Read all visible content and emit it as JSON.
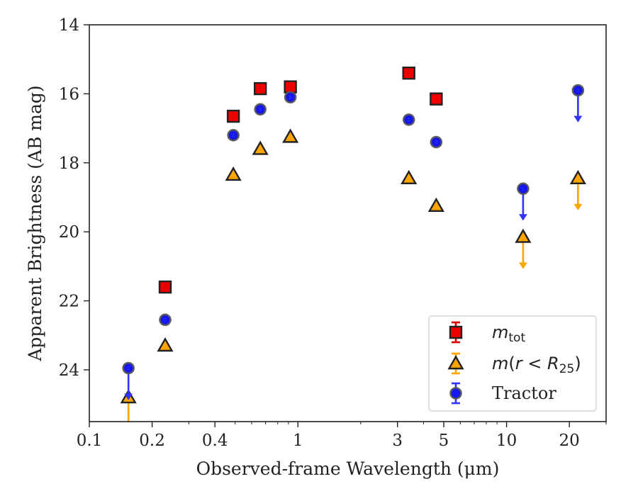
{
  "chart_data": {
    "type": "scatter",
    "title": "",
    "xlabel": "Observed-frame Wavelength (μm)",
    "ylabel": "Apparent Brightness (AB mag)",
    "xscale": "log",
    "xlim": [
      0.1,
      30
    ],
    "ylim": [
      25.5,
      14
    ],
    "y_inverted": true,
    "x_ticks": [
      {
        "value": 0.1,
        "label": "0.1"
      },
      {
        "value": 0.2,
        "label": "0.2"
      },
      {
        "value": 0.4,
        "label": "0.4"
      },
      {
        "value": 1,
        "label": "1"
      },
      {
        "value": 3,
        "label": "3"
      },
      {
        "value": 5,
        "label": "5"
      },
      {
        "value": 10,
        "label": "10"
      },
      {
        "value": 20,
        "label": "20"
      }
    ],
    "y_ticks": [
      {
        "value": 14,
        "label": "14"
      },
      {
        "value": 16,
        "label": "16"
      },
      {
        "value": 18,
        "label": "18"
      },
      {
        "value": 20,
        "label": "20"
      },
      {
        "value": 22,
        "label": "22"
      },
      {
        "value": 24,
        "label": "24"
      }
    ],
    "grid": false,
    "legend_position": "bottom-right",
    "series": [
      {
        "name": "m_tot",
        "marker": "square",
        "color": "#ee0000",
        "errorbar_color": "#dd0000",
        "points": [
          {
            "x": 0.231,
            "y": 21.6
          },
          {
            "x": 0.49,
            "y": 16.65
          },
          {
            "x": 0.66,
            "y": 15.85
          },
          {
            "x": 0.92,
            "y": 15.8
          },
          {
            "x": 3.4,
            "y": 15.4
          },
          {
            "x": 4.6,
            "y": 16.15
          }
        ]
      },
      {
        "name": "m(r<R25)",
        "marker": "triangle",
        "color": "#ffa500",
        "errorbar_color": "#ffa500",
        "points": [
          {
            "x": 0.154,
            "y": 24.8,
            "upper_limit": true
          },
          {
            "x": 0.231,
            "y": 23.3
          },
          {
            "x": 0.49,
            "y": 18.35
          },
          {
            "x": 0.66,
            "y": 17.6
          },
          {
            "x": 0.92,
            "y": 17.25
          },
          {
            "x": 3.4,
            "y": 18.45
          },
          {
            "x": 4.6,
            "y": 19.25
          },
          {
            "x": 12,
            "y": 20.15,
            "upper_limit": true
          },
          {
            "x": 22,
            "y": 18.45,
            "upper_limit": true
          }
        ]
      },
      {
        "name": "Tractor",
        "marker": "circle",
        "color": "#1515ee",
        "errorbar_color": "#3333ff",
        "points": [
          {
            "x": 0.154,
            "y": 23.95,
            "upper_limit": true
          },
          {
            "x": 0.231,
            "y": 22.55
          },
          {
            "x": 0.49,
            "y": 17.2
          },
          {
            "x": 0.66,
            "y": 16.45
          },
          {
            "x": 0.92,
            "y": 16.1
          },
          {
            "x": 3.4,
            "y": 16.75
          },
          {
            "x": 4.6,
            "y": 17.4
          },
          {
            "x": 12,
            "y": 18.75,
            "upper_limit": true
          },
          {
            "x": 22,
            "y": 15.9,
            "upper_limit": true
          }
        ]
      }
    ],
    "legend": [
      {
        "key": "mtot",
        "parts": [
          {
            "t": "m",
            "style": "italic"
          },
          {
            "t": "tot",
            "style": "sub"
          }
        ]
      },
      {
        "key": "mR25",
        "parts": [
          {
            "t": "m",
            "style": "italic"
          },
          {
            "t": "(",
            "style": "normal"
          },
          {
            "t": "r",
            "style": "italic"
          },
          {
            "t": " < ",
            "style": "normal"
          },
          {
            "t": "R",
            "style": "italic"
          },
          {
            "t": "25",
            "style": "sub"
          },
          {
            "t": ")",
            "style": "normal"
          }
        ]
      },
      {
        "key": "tractor",
        "parts": [
          {
            "t": "Tractor",
            "style": "normal"
          }
        ]
      }
    ]
  }
}
